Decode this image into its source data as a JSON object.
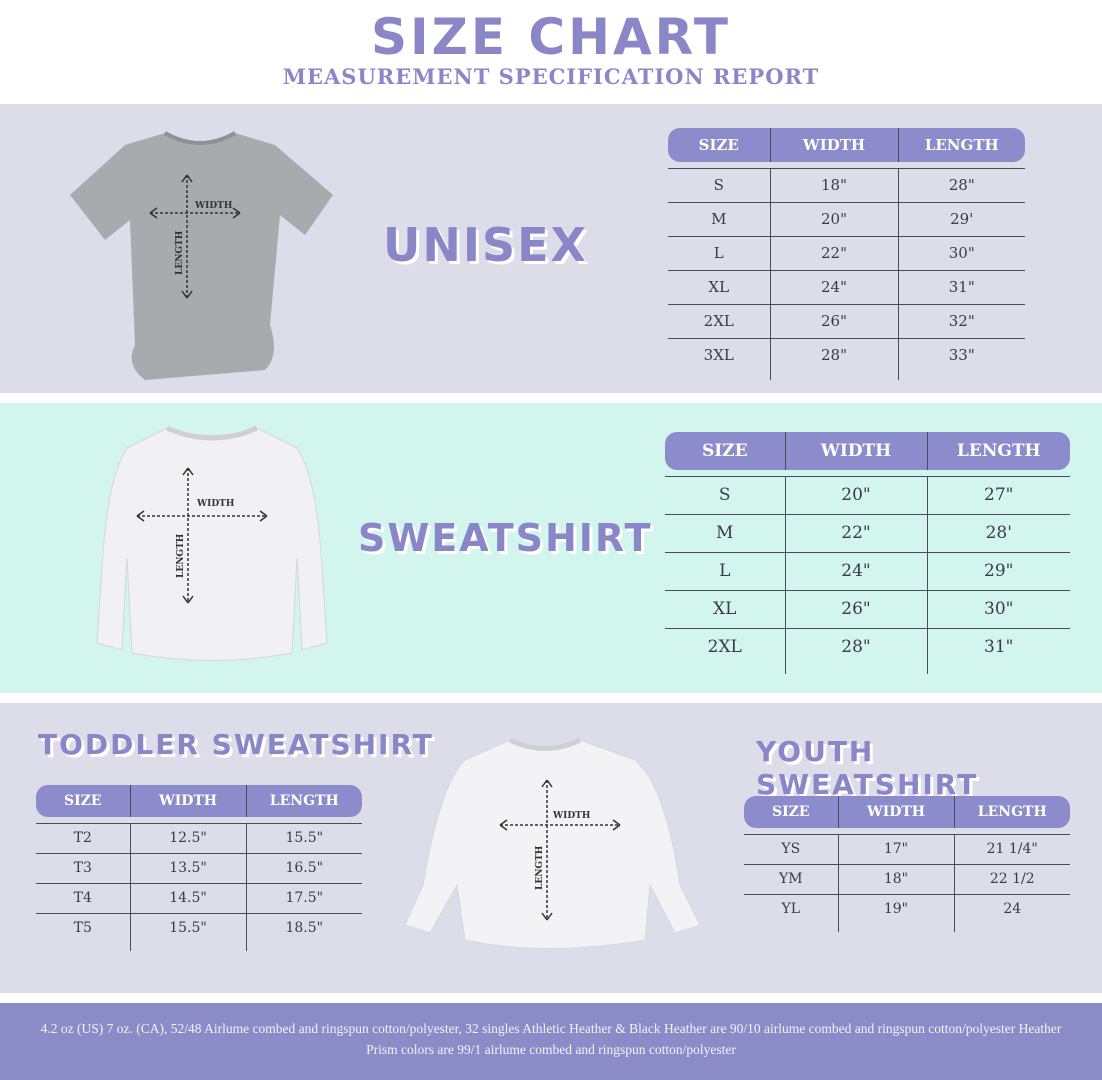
{
  "header": {
    "title": "SIZE CHART",
    "subtitle": "MEASUREMENT SPECIFICATION REPORT"
  },
  "colors": {
    "accent": "#8a86c8",
    "header_pill": "#8c8bcb",
    "band_gray": "#dcdde8",
    "band_mint": "#d2f6ee",
    "footer": "#8b8cc7"
  },
  "diagram_labels": {
    "width": "WIDTH",
    "length": "LENGTH"
  },
  "unisex": {
    "title": "UNISEX",
    "columns": [
      "SIZE",
      "WIDTH",
      "LENGTH"
    ],
    "rows": [
      [
        "S",
        "18\"",
        "28\""
      ],
      [
        "M",
        "20\"",
        "29'"
      ],
      [
        "L",
        "22\"",
        "30\""
      ],
      [
        "XL",
        "24\"",
        "31\""
      ],
      [
        "2XL",
        "26\"",
        "32\""
      ],
      [
        "3XL",
        "28\"",
        "33\""
      ]
    ]
  },
  "sweatshirt": {
    "title": "SWEATSHIRT",
    "columns": [
      "SIZE",
      "WIDTH",
      "LENGTH"
    ],
    "rows": [
      [
        "S",
        "20\"",
        "27\""
      ],
      [
        "M",
        "22\"",
        "28'"
      ],
      [
        "L",
        "24\"",
        "29\""
      ],
      [
        "XL",
        "26\"",
        "30\""
      ],
      [
        "2XL",
        "28\"",
        "31\""
      ]
    ]
  },
  "toddler": {
    "title": "TODDLER SWEATSHIRT",
    "columns": [
      "SIZE",
      "WIDTH",
      "LENGTH"
    ],
    "rows": [
      [
        "T2",
        "12.5\"",
        "15.5\""
      ],
      [
        "T3",
        "13.5\"",
        "16.5\""
      ],
      [
        "T4",
        "14.5\"",
        "17.5\""
      ],
      [
        "T5",
        "15.5\"",
        "18.5\""
      ]
    ]
  },
  "youth": {
    "title": "YOUTH SWEATSHIRT",
    "columns": [
      "SIZE",
      "WIDTH",
      "LENGTH"
    ],
    "rows": [
      [
        "YS",
        "17\"",
        "21 1/4\""
      ],
      [
        "YM",
        "18\"",
        "22 1/2"
      ],
      [
        "YL",
        "19\"",
        "24"
      ]
    ]
  },
  "footer": {
    "text": "4.2 oz (US) 7 oz. (CA), 52/48 Airlume combed and ringspun cotton/polyester, 32 singles Athletic Heather & Black Heather are 90/10 airlume combed and ringspun cotton/polyester Heather Prism colors are 99/1 airlume combed and ringspun cotton/polyester"
  }
}
